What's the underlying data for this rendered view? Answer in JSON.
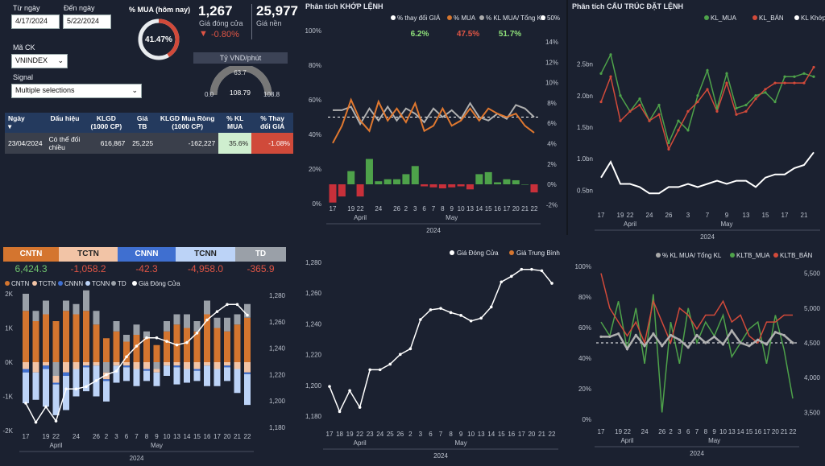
{
  "filters": {
    "from_label": "Từ ngày",
    "from_value": "4/17/2024",
    "to_label": "Đến ngày",
    "to_value": "5/22/2024",
    "mack_label": "Mã CK",
    "mack_value": "VNINDEX",
    "signal_label": "Signal",
    "signal_value": "Multiple selections"
  },
  "kpi": {
    "mua_title": "% MUA (hôm nay)",
    "mua_value": "41.47%",
    "mua_fraction": 0.4147,
    "close_value": "1,267",
    "close_label": "Giá đóng cửa",
    "close_change": "-0.80%",
    "base_value": "25,977",
    "base_label": "Giá nền",
    "fx_title": "Tỷ VND/phút",
    "fx_min": "0.0",
    "fx_max": "108.8",
    "fx_target": "63.7",
    "fx_value": "108.79",
    "fx_fraction": 0.9999
  },
  "table": {
    "headers": [
      "Ngày",
      "Dấu hiệu",
      "KLGD (1000 CP)",
      "Giá TB",
      "KLGD Mua Ròng (1000 CP)",
      "% KL MUA",
      "% Thay đổi GIÁ"
    ],
    "row": [
      "23/04/2024",
      "Có thể đối chiều",
      "616,867",
      "25,225",
      "-162,227",
      "35.6%",
      "-1.08%"
    ]
  },
  "segments": {
    "labels": [
      "CNTN",
      "TCTN",
      "CNNN",
      "TCNN",
      "TD"
    ],
    "values": [
      "6,424.3",
      "-1,058.2",
      "-42.3",
      "-4,958.0",
      "-365.9"
    ],
    "colors": [
      "#d4752f",
      "#f2c4a6",
      "#3f6fd0",
      "#bcd3f7",
      "#9aa0a8"
    ]
  },
  "dates": [
    "17",
    "18",
    "19",
    "22",
    "23",
    "24",
    "25",
    "26",
    "2",
    "3",
    "6",
    "7",
    "8",
    "9",
    "10",
    "13",
    "14",
    "15",
    "16",
    "17",
    "20",
    "21",
    "22"
  ],
  "date_ticks": [
    "17",
    "19",
    "22",
    "24",
    "26",
    "3",
    "7",
    "9",
    "13",
    "15",
    "17",
    "21"
  ],
  "month_april": "April",
  "month_may": "May",
  "year": "2024",
  "chart_flow": {
    "legend": [
      "CNTN",
      "TCTN",
      "CNNN",
      "TCNN",
      "TD",
      "Giá Đóng Cửa"
    ],
    "y_left": [
      "2K",
      "1K",
      "0K",
      "-1K",
      "-2K"
    ],
    "y_right": [
      "1,280",
      "1,260",
      "1,240",
      "1,220",
      "1,200",
      "1,180"
    ],
    "x_ticks": [
      "17",
      "19",
      "22",
      "24",
      "26",
      "2",
      "3",
      "6",
      "7",
      "8",
      "9",
      "10",
      "13",
      "14",
      "15",
      "16",
      "17",
      "20",
      "21",
      "22"
    ],
    "cntn": [
      1500,
      1200,
      1400,
      1200,
      1500,
      1400,
      1500,
      1100,
      700,
      900,
      600,
      800,
      700,
      500,
      900,
      1100,
      1000,
      900,
      1400,
      1000,
      900,
      1100,
      1300
    ],
    "tctn": [
      -200,
      -300,
      -100,
      -200,
      -300,
      -200,
      -100,
      -100,
      -200,
      -100,
      -100,
      -200,
      -200,
      -100,
      -100,
      -100,
      -200,
      -200,
      -100,
      -200,
      -100,
      -200,
      -300
    ],
    "cnnn": [
      -100,
      0,
      -100,
      -50,
      -100,
      0,
      -50,
      0,
      -50,
      0,
      -50,
      0,
      -50,
      0,
      0,
      -50,
      0,
      -50,
      0,
      0,
      -50,
      0,
      -50
    ],
    "tcnn": [
      -900,
      -800,
      -1100,
      -900,
      -1000,
      -800,
      -700,
      -900,
      -600,
      -500,
      -400,
      -500,
      -300,
      -400,
      -300,
      -500,
      -400,
      -300,
      -600,
      -500,
      -400,
      -700,
      -900
    ],
    "td": [
      500,
      300,
      400,
      -400,
      300,
      300,
      600,
      400,
      -300,
      300,
      200,
      300,
      200,
      -200,
      300,
      300,
      400,
      300,
      400,
      300,
      400,
      300,
      400
    ],
    "close": [
      1193,
      1177,
      1190,
      1178,
      1205,
      1205,
      1207,
      1212,
      1217,
      1220,
      1232,
      1241,
      1248,
      1248,
      1245,
      1242,
      1244,
      1252,
      1263,
      1270,
      1276,
      1276,
      1267
    ],
    "close_range": [
      1170,
      1285
    ]
  },
  "chart_khop": {
    "title": "Phân tích KHỚP LỆNH",
    "legend": [
      "% thay đổi GIÁ",
      "% MUA",
      "% KL MUA/ Tổng KL",
      "50%"
    ],
    "summary": [
      "6.2%",
      "47.5%",
      "51.7%"
    ],
    "y_left": [
      "100%",
      "80%",
      "60%",
      "40%",
      "20%",
      "0%"
    ],
    "y_right": [
      "14%",
      "12%",
      "10%",
      "8%",
      "6%",
      "4%",
      "2%",
      "0%",
      "-2%"
    ],
    "pct_mua": [
      35,
      45,
      60,
      48,
      42,
      59,
      48,
      55,
      47,
      58,
      42,
      45,
      55,
      45,
      48,
      55,
      48,
      55,
      52,
      50,
      52,
      45,
      41
    ],
    "pct_kl": [
      54,
      54,
      56,
      46,
      55,
      48,
      56,
      48,
      55,
      52,
      47,
      55,
      50,
      54,
      49,
      58,
      50,
      48,
      52,
      49,
      57,
      55,
      50
    ],
    "price_change": [
      -1.8,
      -1.2,
      1.3,
      -1.2,
      2.5,
      0.3,
      0.5,
      0.5,
      1.0,
      1.8,
      -0.2,
      -0.3,
      -0.4,
      -0.3,
      -0.2,
      -0.5,
      1.0,
      1.2,
      0.2,
      0.5,
      0.4,
      0.0,
      -0.8
    ]
  },
  "chart_price": {
    "legend": [
      "Giá Đóng Cửa",
      "Giá Trung Bình"
    ],
    "y_left": [
      "1,280",
      "1,260",
      "1,240",
      "1,220",
      "1,200",
      "1,180"
    ],
    "x_ticks": [
      "17",
      "18",
      "19",
      "22",
      "23",
      "24",
      "25",
      "26",
      "2",
      "3",
      "6",
      "7",
      "8",
      "9",
      "10",
      "13",
      "14",
      "15",
      "16",
      "17",
      "20",
      "21",
      "22"
    ],
    "close": [
      1193,
      1175,
      1190,
      1178,
      1205,
      1205,
      1209,
      1216,
      1220,
      1241,
      1248,
      1249,
      1246,
      1244,
      1240,
      1242,
      1250,
      1268,
      1272,
      1277,
      1277,
      1276,
      1267
    ],
    "range": [
      1170,
      1282
    ]
  },
  "chart_cautruc": {
    "title": "Phân tích CẤU TRÚC ĐẶT LỆNH",
    "legend": [
      "KL_MUA",
      "KL_BÁN",
      "KL Khớp"
    ],
    "y_left": [
      "2.5bn",
      "2.0bn",
      "1.5bn",
      "1.0bn",
      "0.5bn"
    ],
    "kl_mua": [
      2.35,
      2.65,
      2.0,
      1.75,
      1.95,
      1.6,
      1.85,
      1.25,
      1.6,
      1.45,
      2.0,
      2.4,
      1.8,
      2.35,
      1.8,
      1.85,
      2.0,
      2.05,
      1.9,
      2.3,
      2.3,
      2.35,
      2.3
    ],
    "kl_ban": [
      1.9,
      2.3,
      1.6,
      1.75,
      1.85,
      1.6,
      1.7,
      1.15,
      1.45,
      1.75,
      1.9,
      2.1,
      1.75,
      2.2,
      1.7,
      1.75,
      1.95,
      2.1,
      2.2,
      2.2,
      2.2,
      2.2,
      2.45
    ],
    "kl_khop": [
      0.7,
      0.95,
      0.6,
      0.6,
      0.55,
      0.45,
      0.45,
      0.55,
      0.55,
      0.6,
      0.55,
      0.6,
      0.65,
      0.6,
      0.65,
      0.65,
      0.55,
      0.7,
      0.75,
      0.75,
      0.85,
      0.9,
      1.1
    ],
    "range": [
      0.3,
      2.75
    ]
  },
  "chart_kltb": {
    "legend": [
      "% KL MUA/ Tổng KL",
      "KLTB_MUA",
      "KLTB_BÁN"
    ],
    "y_left": [
      "100%",
      "80%",
      "60%",
      "40%",
      "20%",
      "0%"
    ],
    "y_right": [
      "5,500",
      "5,000",
      "4,500",
      "4,000",
      "3,500"
    ],
    "pct_kl": [
      54,
      54,
      56,
      46,
      55,
      48,
      56,
      48,
      55,
      52,
      47,
      55,
      50,
      54,
      49,
      58,
      50,
      48,
      52,
      49,
      57,
      55,
      50
    ],
    "kltb_mua": [
      4800,
      4600,
      5100,
      4400,
      5000,
      4200,
      5200,
      3500,
      4800,
      4200,
      5000,
      4500,
      4800,
      4600,
      4900,
      4300,
      4500,
      4700,
      4800,
      4200,
      4900,
      4400,
      3700
    ],
    "kltb_ban": [
      5500,
      5000,
      4800,
      4600,
      4800,
      4500,
      5100,
      4800,
      4500,
      5000,
      4900,
      4700,
      4900,
      4900,
      5100,
      4800,
      4900,
      4600,
      4500,
      4800,
      4800,
      4900,
      4900
    ],
    "range": [
      3400,
      5600
    ]
  }
}
